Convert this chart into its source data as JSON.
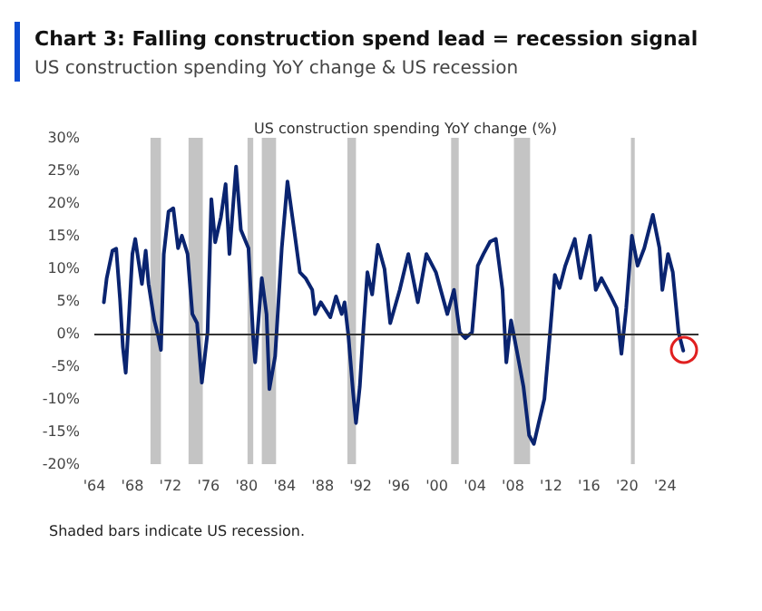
{
  "chart_data": {
    "type": "line",
    "title": "Chart 3: Falling construction spend lead = recession signal",
    "subtitle": "US construction spending YoY change & US recession",
    "ylabel": "US construction spending YoY change (%)",
    "annotations": [
      "Shaded bars indicate US recession."
    ],
    "series": [
      {
        "color": "#0a2470",
        "x": [
          1965.0,
          1965.3,
          1965.9,
          1966.3,
          1966.7,
          1967.0,
          1967.3,
          1967.6,
          1968.0,
          1968.3,
          1969.0,
          1969.4,
          1969.7,
          1970.3,
          1970.7,
          1971.0,
          1971.3,
          1971.8,
          1972.3,
          1972.8,
          1973.2,
          1973.8,
          1974.3,
          1974.8,
          1975.3,
          1975.9,
          1976.3,
          1976.7,
          1977.3,
          1977.8,
          1978.2,
          1978.9,
          1979.4,
          1980.2,
          1980.7,
          1980.9,
          1981.6,
          1982.1,
          1982.4,
          1983.0,
          1983.7,
          1984.3,
          1985.0,
          1985.6,
          1986.2,
          1986.9,
          1987.2,
          1987.8,
          1988.8,
          1989.4,
          1990.0,
          1990.3,
          1990.7,
          1991.2,
          1991.5,
          1991.9,
          1992.3,
          1992.7,
          1993.2,
          1993.8,
          1994.5,
          1995.1,
          1996.1,
          1997.0,
          1998.0,
          1998.9,
          1999.9,
          2001.1,
          2001.8,
          2002.4,
          2003.0,
          2003.7,
          2004.3,
          2004.9,
          2005.6,
          2006.2,
          2006.9,
          2007.3,
          2007.8,
          2008.4,
          2009.1,
          2009.7,
          2010.2,
          2010.7,
          2011.3,
          2011.9,
          2012.4,
          2012.9,
          2013.5,
          2014.5,
          2015.1,
          2016.1,
          2016.7,
          2017.3,
          2018.3,
          2018.9,
          2019.4,
          2019.9,
          2020.5,
          2021.1,
          2021.8,
          2022.7,
          2023.4,
          2023.7,
          2024.3,
          2024.8,
          2025.4,
          2025.9
        ],
        "values": [
          4.8,
          8.5,
          12.7,
          13,
          5.3,
          -2.1,
          -6,
          1.6,
          12.2,
          14.5,
          7.6,
          12.7,
          7.6,
          2,
          -0.3,
          -2.5,
          12.2,
          18.7,
          19.2,
          13.1,
          15,
          12.2,
          3,
          1.6,
          -7.5,
          0.2,
          20.6,
          14,
          17.8,
          22.9,
          12.2,
          25.6,
          15.9,
          13.1,
          -0.7,
          -4.4,
          8.5,
          3,
          -8.5,
          -3.5,
          13.1,
          23.3,
          15.9,
          9.4,
          8.5,
          6.7,
          3,
          4.8,
          2.5,
          5.7,
          3,
          4.8,
          -0.3,
          -9.1,
          -13.7,
          -8.1,
          1.1,
          9.4,
          6,
          13.6,
          9.9,
          1.6,
          6.7,
          12.2,
          4.8,
          12.2,
          9.4,
          3,
          6.7,
          0.2,
          -0.7,
          0.2,
          10.4,
          12.2,
          14.1,
          14.5,
          6.7,
          -4.4,
          2,
          -2.6,
          -8.1,
          -15.6,
          -16.9,
          -13.7,
          -10,
          0.2,
          9,
          7,
          10.4,
          14.5,
          8.5,
          15,
          6.7,
          8.5,
          5.7,
          3.9,
          -3.1,
          3.9,
          15,
          10.4,
          13.1,
          18.2,
          13.1,
          6.7,
          12.2,
          9.4,
          0.2,
          -2.6
        ]
      }
    ],
    "bands": [
      {
        "axis": "x",
        "from": 1969.9,
        "to": 1971.0,
        "color": "#c4c4c4"
      },
      {
        "axis": "x",
        "from": 1973.9,
        "to": 1975.4,
        "color": "#c4c4c4"
      },
      {
        "axis": "x",
        "from": 1980.1,
        "to": 1980.7,
        "color": "#c4c4c4"
      },
      {
        "axis": "x",
        "from": 1981.6,
        "to": 1983.1,
        "color": "#c4c4c4"
      },
      {
        "axis": "x",
        "from": 1990.6,
        "to": 1991.5,
        "color": "#c4c4c4"
      },
      {
        "axis": "x",
        "from": 2001.5,
        "to": 2002.3,
        "color": "#c4c4c4"
      },
      {
        "axis": "x",
        "from": 2008.1,
        "to": 2009.8,
        "color": "#c4c4c4"
      },
      {
        "axis": "x",
        "from": 2020.4,
        "to": 2020.8,
        "color": "#c4c4c4"
      }
    ],
    "ref_lines": [
      {
        "axis": "y",
        "value": 0,
        "color": "#333333"
      }
    ],
    "xlim": [
      1964,
      2027.5
    ],
    "xticks": [
      {
        "value": 1964,
        "label": "'64"
      },
      {
        "value": 1968,
        "label": "'68"
      },
      {
        "value": 1972,
        "label": "'72"
      },
      {
        "value": 1976,
        "label": "'76"
      },
      {
        "value": 1980,
        "label": "'80"
      },
      {
        "value": 1984,
        "label": "'84"
      },
      {
        "value": 1988,
        "label": "'88"
      },
      {
        "value": 1992,
        "label": "'92"
      },
      {
        "value": 1996,
        "label": "'96"
      },
      {
        "value": 2000,
        "label": "'00"
      },
      {
        "value": 2004,
        "label": "'04"
      },
      {
        "value": 2008,
        "label": "'08"
      },
      {
        "value": 2012,
        "label": "'12"
      },
      {
        "value": 2016,
        "label": "'16"
      },
      {
        "value": 2020,
        "label": "'20"
      },
      {
        "value": 2024,
        "label": "'24"
      }
    ],
    "ylim": [
      -20,
      30
    ],
    "yticks": [
      {
        "value": -20,
        "label": "-20%"
      },
      {
        "value": -15,
        "label": "-15%"
      },
      {
        "value": -10,
        "label": "-10%"
      },
      {
        "value": -5,
        "label": "-5%"
      },
      {
        "value": 0,
        "label": "0%"
      },
      {
        "value": 5,
        "label": "5%"
      },
      {
        "value": 10,
        "label": "10%"
      },
      {
        "value": 15,
        "label": "15%"
      },
      {
        "value": 20,
        "label": "20%"
      },
      {
        "value": 25,
        "label": "25%"
      },
      {
        "value": 30,
        "label": "30%"
      }
    ],
    "grid": false,
    "marker": "none",
    "line_style": "solid"
  }
}
